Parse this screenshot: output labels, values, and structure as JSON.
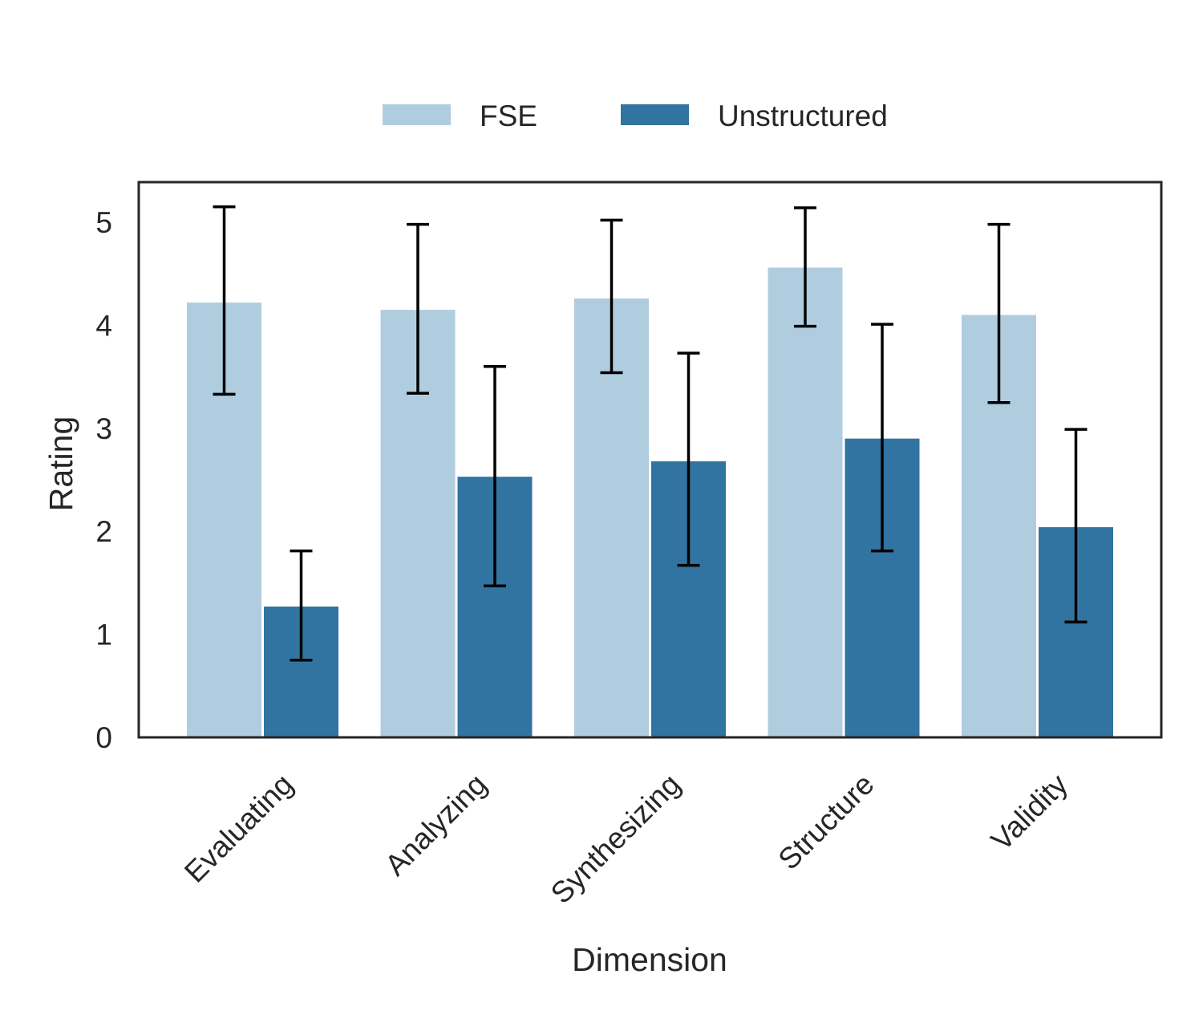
{
  "chart_data": {
    "type": "bar",
    "categories": [
      "Evaluating",
      "Analyzing",
      "Synthesizing",
      "Structure",
      "Validity"
    ],
    "series": [
      {
        "name": "FSE",
        "color": "#b0cddf",
        "values": [
          4.22,
          4.15,
          4.26,
          4.56,
          4.1
        ],
        "error_low": [
          3.33,
          3.34,
          3.54,
          3.99,
          3.25
        ],
        "error_high": [
          5.15,
          4.98,
          5.02,
          5.14,
          4.98
        ]
      },
      {
        "name": "Unstructured",
        "color": "#3274a1",
        "values": [
          1.27,
          2.53,
          2.68,
          2.9,
          2.04
        ],
        "error_low": [
          0.75,
          1.47,
          1.67,
          1.81,
          1.12
        ],
        "error_high": [
          1.81,
          3.6,
          3.73,
          4.01,
          2.99
        ]
      }
    ],
    "xlabel": "Dimension",
    "ylabel": "Rating",
    "ylim": [
      0,
      5.4
    ],
    "yticks": [
      0,
      1,
      2,
      3,
      4,
      5
    ],
    "legend": {
      "placement": "top-center",
      "columns": 2
    },
    "grid": false,
    "error_bar_color": "#000000"
  }
}
